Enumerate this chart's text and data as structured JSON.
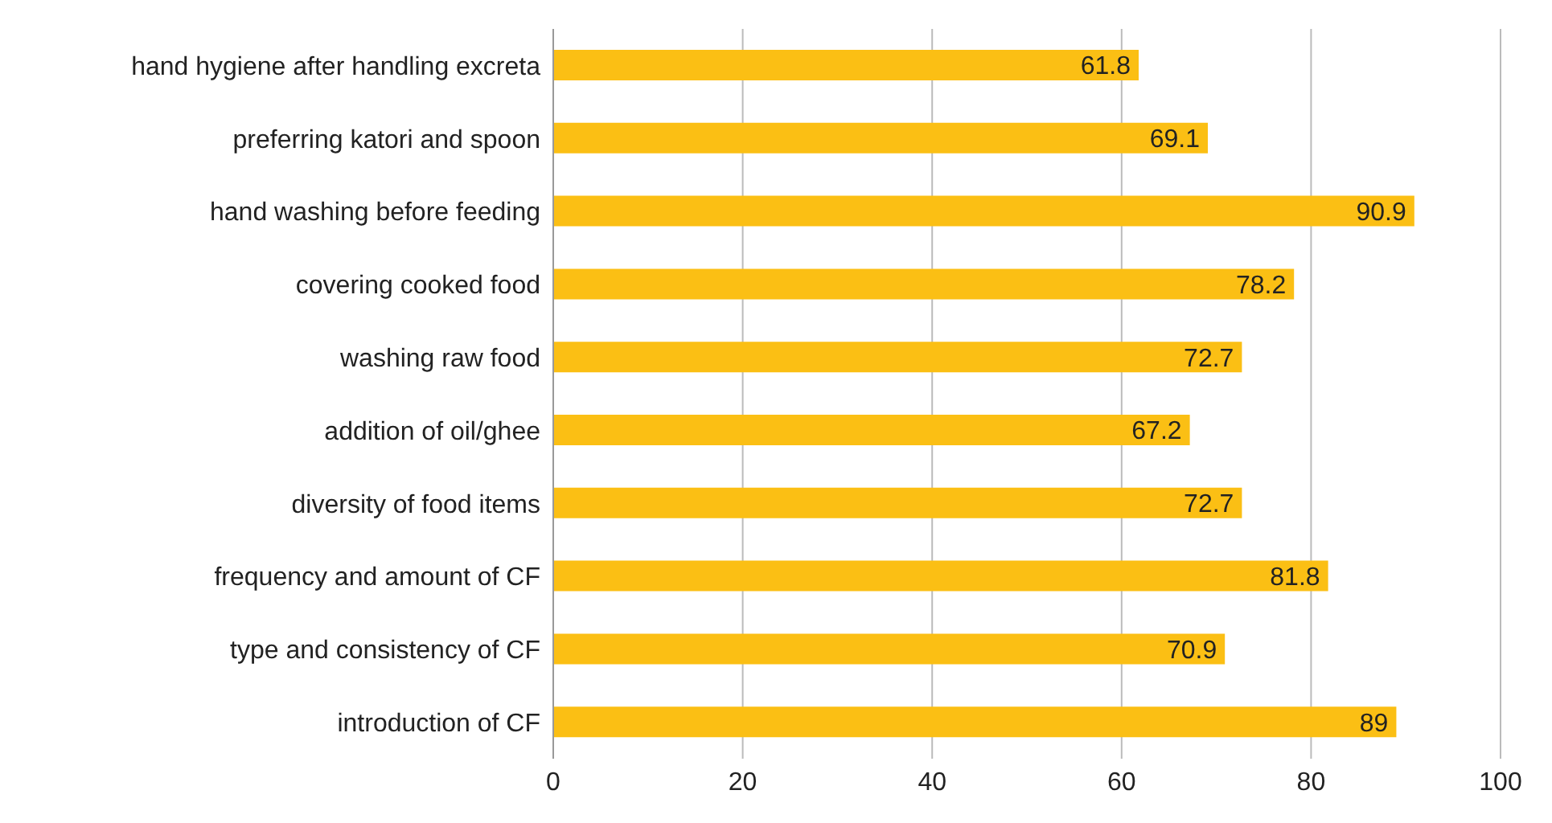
{
  "chart_data": {
    "type": "bar",
    "orientation": "horizontal",
    "categories": [
      "hand hygiene after handling excreta",
      "preferring katori and spoon",
      "hand washing before feeding",
      "covering cooked food",
      "washing raw food",
      "addition of oil/ghee",
      "diversity of food items",
      "frequency and amount of CF",
      "type and consistency of CF",
      "introduction of CF"
    ],
    "values": [
      61.8,
      69.1,
      90.9,
      78.2,
      72.7,
      67.2,
      72.7,
      81.8,
      70.9,
      89
    ],
    "color": "#fbbf14",
    "xlim": [
      0,
      100
    ],
    "xticks": [
      0,
      20,
      40,
      60,
      80,
      100
    ],
    "grid": "x",
    "data_labels": true,
    "legend": false
  }
}
